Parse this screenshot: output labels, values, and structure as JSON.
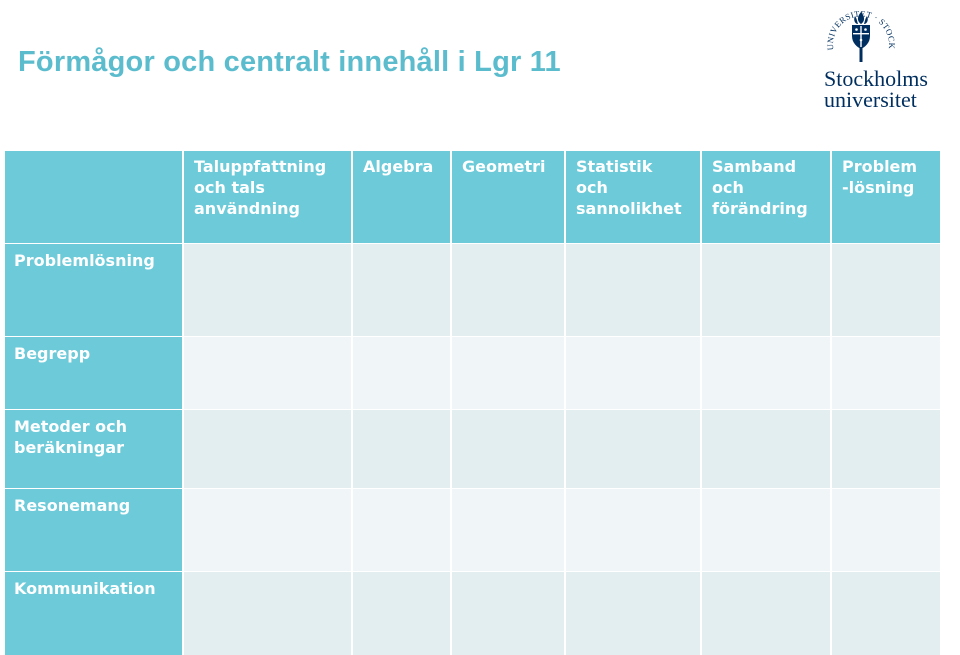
{
  "title": "Förmågor och centralt innehåll i Lgr 11",
  "logo": {
    "name": "Stockholms universitet",
    "line1": "Stockholms",
    "line2": "universitet",
    "seal_text": "UNIVERSITET STOCKHOLMS"
  },
  "table": {
    "corner": "",
    "columns": [
      [
        "Taluppfattning",
        "och tals",
        "användning"
      ],
      [
        "Algebra"
      ],
      [
        "Geometri"
      ],
      [
        "Statistik",
        "och",
        "sannolikhet"
      ],
      [
        "Samband",
        "och",
        "förändring"
      ],
      [
        "Problem",
        "-lösning"
      ]
    ],
    "rows": [
      [
        "Problemlösning"
      ],
      [
        "Begrepp"
      ],
      [
        "Metoder och",
        "beräkningar"
      ],
      [
        "Resonemang"
      ],
      [
        "Kommunikation"
      ]
    ],
    "cells": [
      [
        "",
        "",
        "",
        "",
        "",
        ""
      ],
      [
        "",
        "",
        "",
        "",
        "",
        ""
      ],
      [
        "",
        "",
        "",
        "",
        "",
        ""
      ],
      [
        "",
        "",
        "",
        "",
        "",
        ""
      ],
      [
        "",
        "",
        "",
        "",
        "",
        ""
      ]
    ]
  },
  "colors": {
    "title": "#5bbccd",
    "header_fill": "#6ccad9",
    "body_dark": "#e2eef0",
    "body_light": "#f0f6f8",
    "logo_navy": "#002f5f"
  }
}
